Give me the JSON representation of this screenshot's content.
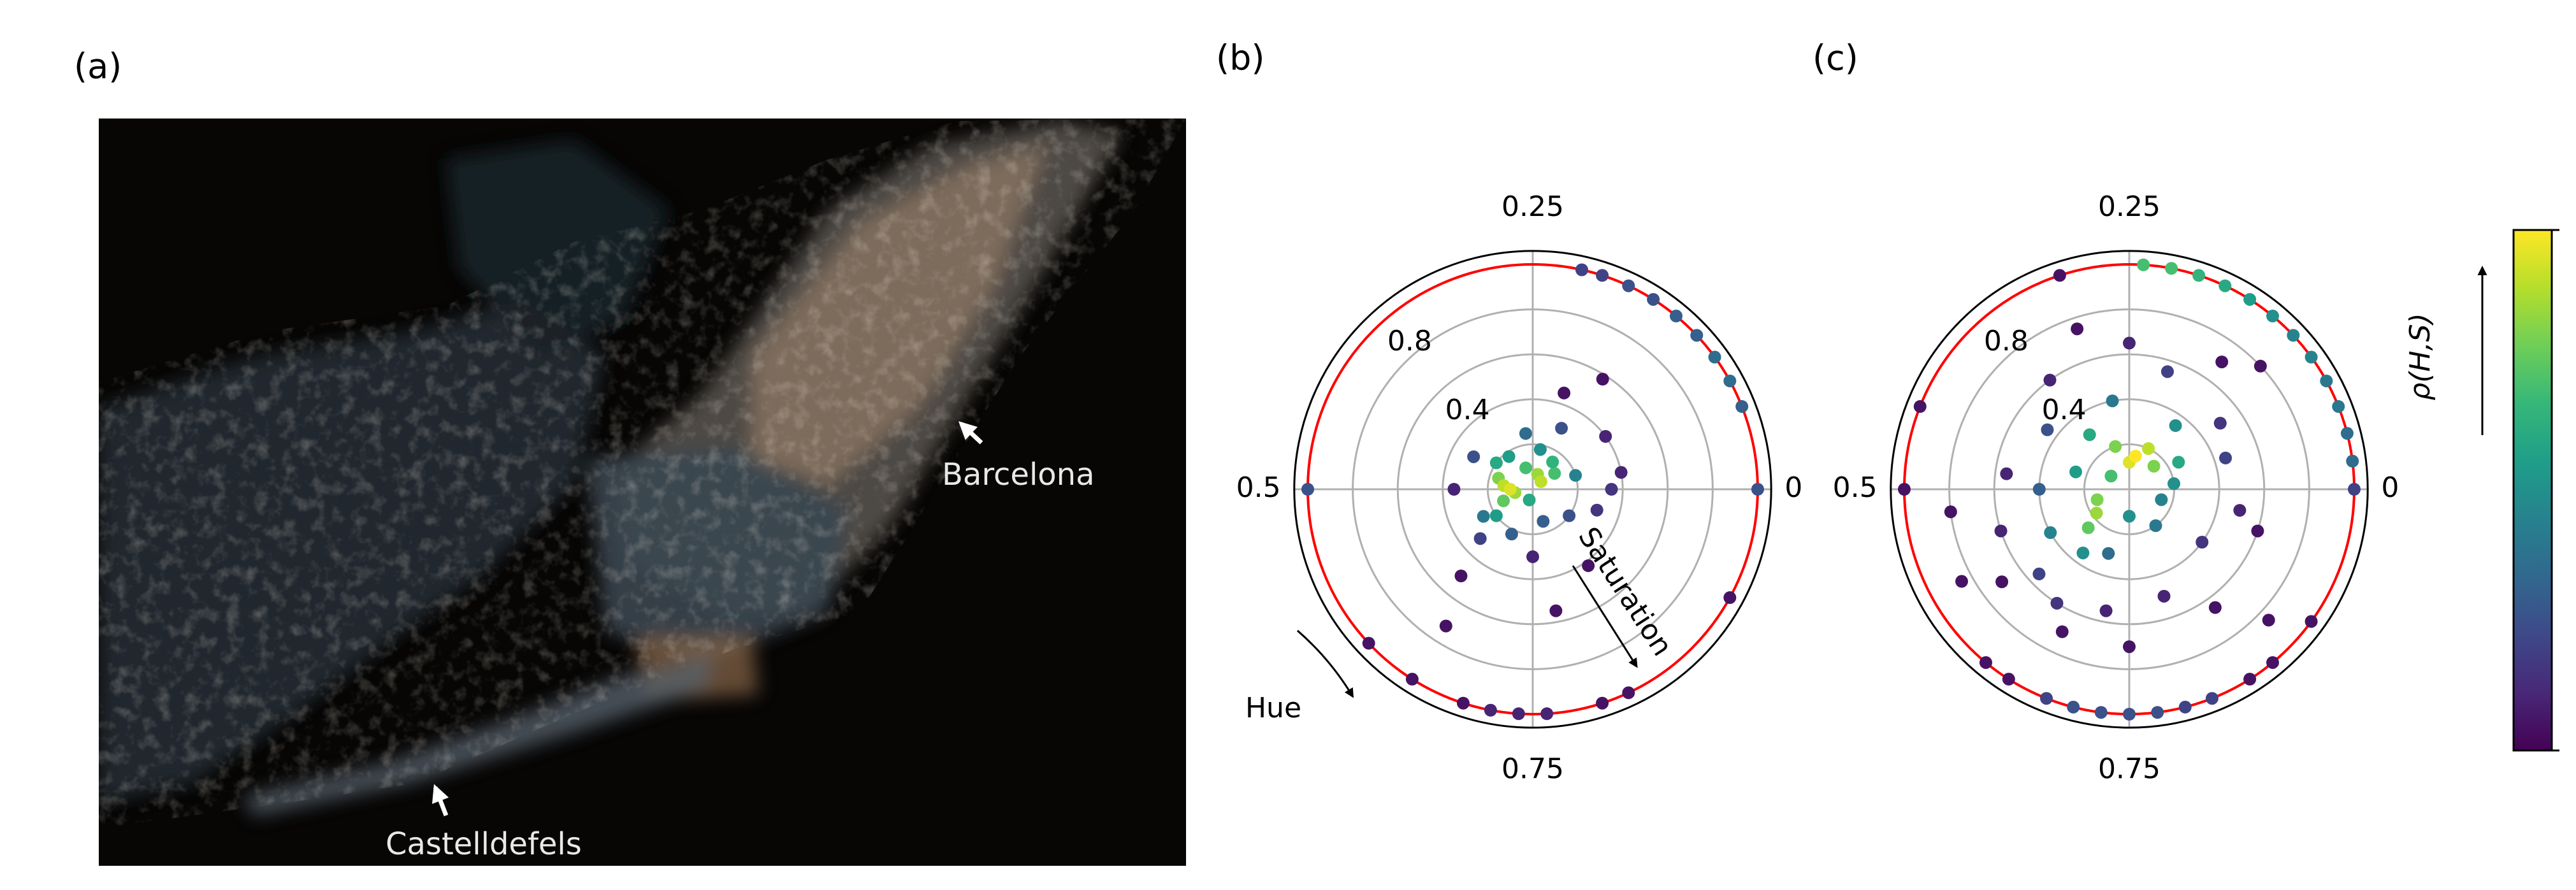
{
  "photo": {
    "panel_label": "(a)",
    "labels": [
      "Barcelona",
      "Castelldefels"
    ]
  },
  "chart_data": [
    {
      "type": "polar-scatter",
      "panel_label": "(b)",
      "annotations": [
        "Saturation",
        "Hue"
      ],
      "thetaticks": [
        0,
        0.25,
        0.5,
        0.75
      ],
      "rgrid": [
        0.2,
        0.4,
        0.6,
        0.8
      ],
      "rticks": [
        0.4,
        0.8
      ],
      "rlim": [
        0,
        1.06
      ],
      "reference_circle": 1,
      "reference_color": "red",
      "cmap": "viridis",
      "points": {
        "hue": [
          0.5,
          0.48,
          0.53,
          0.12,
          0.45,
          0.56,
          0.2,
          0.4,
          0.6,
          0.15,
          0.1,
          0.3,
          0.7,
          0.35,
          0.58,
          0.05,
          0.22,
          0.42,
          0.62,
          0.9,
          0.8,
          0.18,
          0.27,
          0.68,
          0,
          0.5,
          0.75,
          0.95,
          0.1,
          0.2,
          0.16,
          0.64,
          0.78,
          0.66,
          0.85,
          0.03,
          0.06,
          0.08,
          0.1,
          0.12,
          0.14,
          0.16,
          0.18,
          0.2,
          0.215,
          0,
          0.5,
          0.62,
          0.66,
          0.7,
          0.72,
          0.74,
          0.76,
          0.8,
          0.82,
          0.92
        ],
        "saturation": [
          0.1,
          0.13,
          0.08,
          0.05,
          0.16,
          0.14,
          0.07,
          0.2,
          0.2,
          0.15,
          0.12,
          0.1,
          0.05,
          0.18,
          0.25,
          0.2,
          0.18,
          0.3,
          0.32,
          0.2,
          0.15,
          0.3,
          0.25,
          0.22,
          0.35,
          0.35,
          0.3,
          0.3,
          0.4,
          0.45,
          0.58,
          0.5,
          0.55,
          0.72,
          0.42,
          0.4,
          1,
          1,
          1,
          1,
          1,
          1,
          1,
          1,
          1,
          1,
          1,
          1,
          1,
          1,
          1,
          1,
          1,
          1,
          1,
          1
        ],
        "density": [
          0.95,
          0.9,
          0.85,
          0.9,
          0.8,
          0.75,
          0.85,
          0.6,
          0.55,
          0.65,
          0.7,
          0.7,
          0.6,
          0.55,
          0.4,
          0.45,
          0.5,
          0.25,
          0.2,
          0.25,
          0.3,
          0.25,
          0.35,
          0.3,
          0.15,
          0.1,
          0.1,
          0.15,
          0.1,
          0.05,
          0.05,
          0.05,
          0.05,
          0.05,
          0.05,
          0.1,
          0.3,
          0.35,
          0.35,
          0.3,
          0.3,
          0.25,
          0.25,
          0.2,
          0.2,
          0.25,
          0.25,
          0.05,
          0.05,
          0.05,
          0.1,
          0.1,
          0.1,
          0.05,
          0.05,
          0.05
        ]
      }
    },
    {
      "type": "polar-scatter",
      "panel_label": "(c)",
      "thetaticks": [
        0,
        0.25,
        0.5,
        0.75
      ],
      "rgrid": [
        0.2,
        0.4,
        0.6,
        0.8
      ],
      "rticks": [
        0.4,
        0.8
      ],
      "rlim": [
        0,
        1.06
      ],
      "reference_circle": 1,
      "reference_color": "red",
      "cmap": "viridis",
      "colorbar": {
        "label": "ρ(H,S)",
        "lim": [
          0,
          1
        ]
      },
      "points": {
        "hue": [
          0.22,
          0.25,
          0.18,
          0.6,
          0.62,
          0.3,
          0.12,
          0.55,
          0.4,
          0.08,
          0.35,
          0.65,
          0.58,
          0.45,
          0.15,
          0.28,
          0.02,
          0.95,
          0.85,
          0.75,
          0.7,
          0.5,
          0.4,
          0.62,
          0.66,
          0.55,
          0.2,
          0.25,
          0.1,
          0.05,
          0.9,
          0.8,
          0.72,
          0.68,
          0.6,
          0.75,
          0.85,
          0.95,
          0.48,
          0.35,
          0.15,
          0.3,
          0.52,
          0.58,
          0.88,
          0.97,
          0.12,
          0.02,
          0.04,
          0.06,
          0.08,
          0.1,
          0.12,
          0.14,
          0.16,
          0.18,
          0.2,
          0.22,
          0.24,
          0.69,
          0.71,
          0.73,
          0.75,
          0.77,
          0.79,
          0.81,
          0.64,
          0.66,
          0.84,
          0.86,
          0.9,
          0.44,
          0.5,
          0,
          0.3
        ],
        "saturation": [
          0.15,
          0.12,
          0.2,
          0.18,
          0.25,
          0.2,
          0.15,
          0.15,
          0.1,
          0.25,
          0.3,
          0.35,
          0.4,
          0.25,
          0.35,
          0.4,
          0.2,
          0.15,
          0.2,
          0.12,
          0.3,
          0.4,
          0.45,
          0.55,
          0.6,
          0.6,
          0.55,
          0.65,
          0.5,
          0.45,
          0.4,
          0.5,
          0.55,
          0.7,
          0.7,
          0.7,
          0.65,
          0.6,
          0.55,
          0.6,
          0.7,
          0.75,
          0.8,
          0.85,
          0.85,
          0.5,
          0.8,
          1,
          1,
          1,
          1,
          1,
          1,
          1,
          1,
          1,
          1,
          1,
          1,
          1,
          1,
          1,
          1,
          1,
          1,
          1,
          1,
          1,
          1,
          1,
          1,
          1,
          1,
          1,
          1
        ],
        "density": [
          1,
          0.95,
          0.9,
          0.85,
          0.75,
          0.8,
          0.8,
          0.8,
          0.7,
          0.6,
          0.6,
          0.5,
          0.45,
          0.55,
          0.5,
          0.4,
          0.5,
          0.45,
          0.4,
          0.5,
          0.35,
          0.3,
          0.25,
          0.2,
          0.15,
          0.1,
          0.2,
          0.1,
          0.15,
          0.2,
          0.15,
          0.1,
          0.1,
          0.05,
          0.05,
          0.05,
          0.05,
          0.05,
          0.1,
          0.1,
          0.05,
          0.05,
          0.05,
          0.05,
          0.05,
          0.1,
          0.05,
          0.35,
          0.35,
          0.4,
          0.4,
          0.45,
          0.45,
          0.5,
          0.55,
          0.6,
          0.65,
          0.7,
          0.7,
          0.2,
          0.25,
          0.25,
          0.25,
          0.25,
          0.2,
          0.2,
          0.05,
          0.05,
          0.05,
          0.05,
          0.05,
          0.05,
          0.05,
          0.2,
          0.05
        ]
      }
    }
  ]
}
